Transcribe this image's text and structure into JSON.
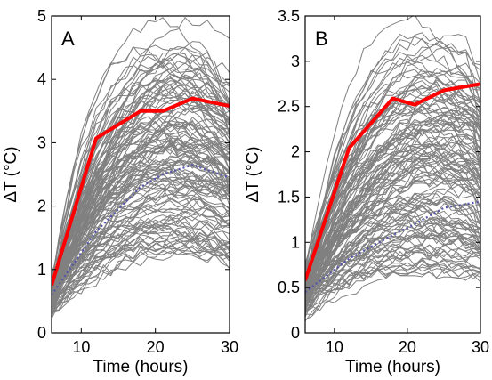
{
  "chart_data": [
    {
      "panel": "A",
      "type": "line",
      "xlabel": "Time (hours)",
      "ylabel": "ΔT (°C)",
      "xlim": [
        6,
        30
      ],
      "ylim": [
        0,
        5
      ],
      "xticks": [
        10,
        20,
        30
      ],
      "yticks": [
        0,
        1,
        2,
        3,
        4,
        5
      ],
      "grid": false,
      "x": [
        6,
        12,
        18,
        21,
        25,
        30
      ],
      "highlight_series": {
        "color": "#ff0000",
        "style": "solid",
        "values": [
          0.75,
          3.07,
          3.5,
          3.5,
          3.7,
          3.58
        ]
      },
      "mean_series": {
        "color": "#5555aa",
        "style": "dotted",
        "values": [
          0.6,
          1.6,
          2.3,
          2.5,
          2.65,
          2.45
        ]
      },
      "background_curves": {
        "color": "#808080",
        "count": 130,
        "start_range": [
          0.22,
          0.9
        ],
        "peak_range": [
          0.7,
          5.0
        ],
        "peak_time_range": [
          18,
          29
        ]
      }
    },
    {
      "panel": "B",
      "type": "line",
      "xlabel": "Time (hours)",
      "ylabel": "ΔT (°C)",
      "xlim": [
        6,
        30
      ],
      "ylim": [
        0,
        3.5
      ],
      "xticks": [
        10,
        20,
        30
      ],
      "yticks": [
        0,
        0.5,
        1,
        1.5,
        2,
        2.5,
        3,
        3.5
      ],
      "grid": false,
      "x": [
        6,
        12,
        18,
        21,
        25,
        30
      ],
      "highlight_series": {
        "color": "#ff0000",
        "style": "solid",
        "values": [
          0.58,
          2.04,
          2.59,
          2.52,
          2.68,
          2.75
        ]
      },
      "mean_series": {
        "color": "#5555aa",
        "style": "dotted",
        "values": [
          0.45,
          0.82,
          1.08,
          1.2,
          1.38,
          1.45
        ]
      },
      "background_curves": {
        "color": "#808080",
        "count": 130,
        "start_range": [
          0.1,
          0.8
        ],
        "peak_range": [
          0.15,
          3.5
        ],
        "peak_time_range": [
          20,
          30
        ]
      }
    }
  ]
}
